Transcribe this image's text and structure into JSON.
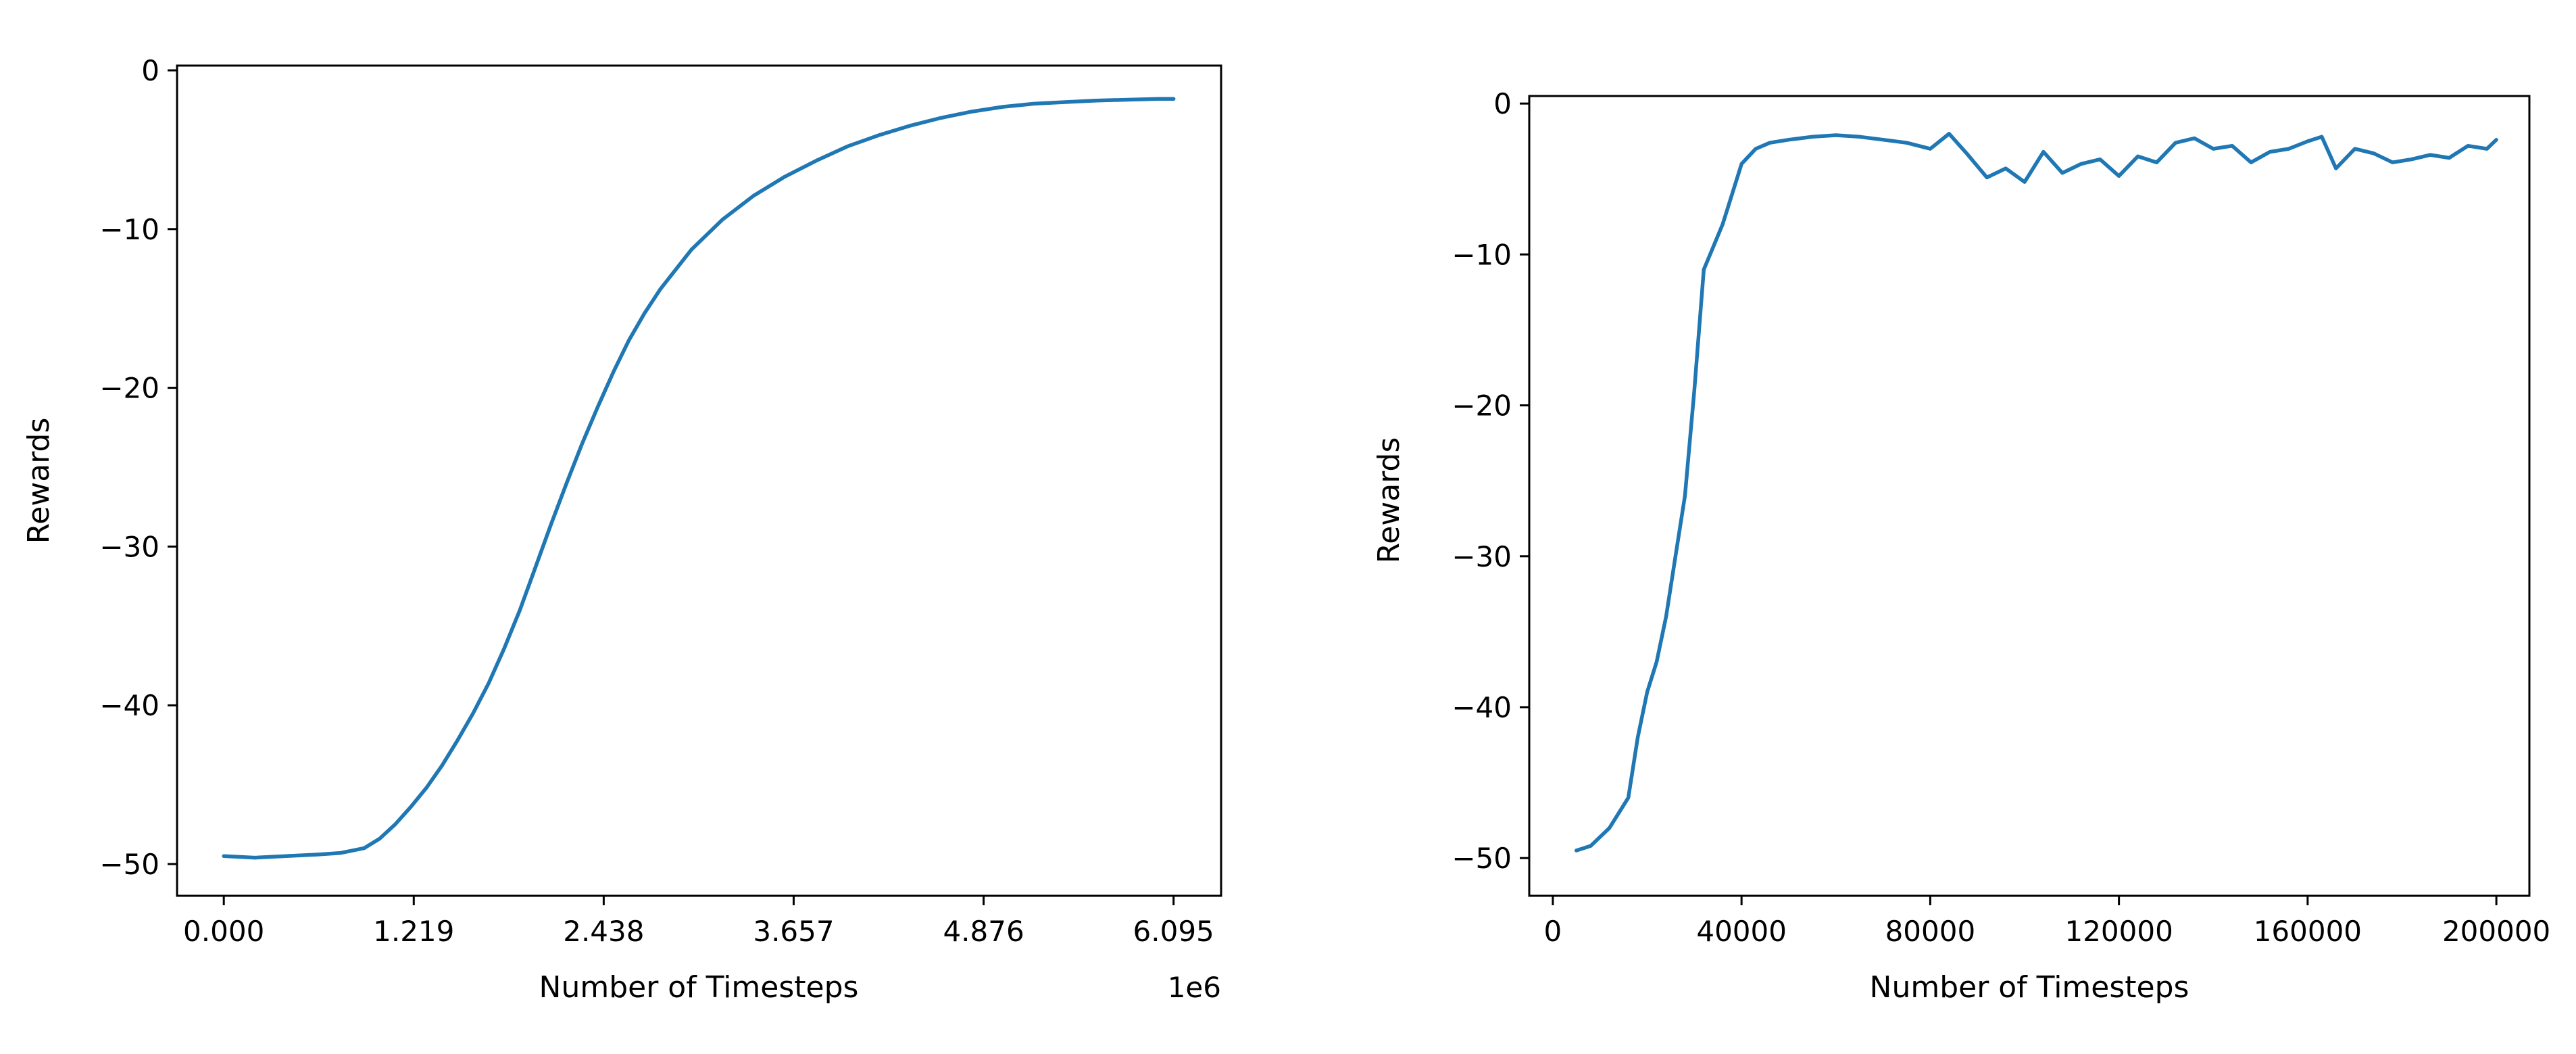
{
  "chart_data": [
    {
      "type": "line",
      "title": "",
      "xlabel": "Number of Timesteps",
      "ylabel": "Rewards",
      "x_offset_label": "1e6",
      "xlim": [
        -0.3,
        6.4
      ],
      "ylim": [
        -52,
        0.3
      ],
      "xticks": [
        0.0,
        1.219,
        2.438,
        3.657,
        4.876,
        6.095
      ],
      "xtick_labels": [
        "0.000",
        "1.219",
        "2.438",
        "3.657",
        "4.876",
        "6.095"
      ],
      "yticks": [
        0,
        -10,
        -20,
        -30,
        -40,
        -50
      ],
      "ytick_labels": [
        "0",
        "−10",
        "−20",
        "−30",
        "−40",
        "−50"
      ],
      "grid": false,
      "color": "#1f77b4",
      "series": [
        {
          "x": [
            0.0,
            0.2,
            0.4,
            0.6,
            0.75,
            0.9,
            1.0,
            1.1,
            1.2,
            1.3,
            1.4,
            1.5,
            1.6,
            1.7,
            1.8,
            1.9,
            2.0,
            2.1,
            2.2,
            2.3,
            2.4,
            2.5,
            2.6,
            2.7,
            2.8,
            3.0,
            3.2,
            3.4,
            3.6,
            3.8,
            4.0,
            4.2,
            4.4,
            4.6,
            4.8,
            5.0,
            5.2,
            5.4,
            5.6,
            5.8,
            6.0,
            6.095
          ],
          "values": [
            -49.5,
            -49.6,
            -49.5,
            -49.4,
            -49.3,
            -49.0,
            -48.4,
            -47.5,
            -46.4,
            -45.2,
            -43.8,
            -42.2,
            -40.5,
            -38.6,
            -36.4,
            -34.0,
            -31.3,
            -28.6,
            -26.0,
            -23.5,
            -21.2,
            -19.0,
            -17.0,
            -15.3,
            -13.8,
            -11.3,
            -9.4,
            -7.9,
            -6.7,
            -5.7,
            -4.8,
            -4.1,
            -3.5,
            -3.0,
            -2.6,
            -2.3,
            -2.1,
            -2.0,
            -1.9,
            -1.85,
            -1.8,
            -1.8
          ]
        }
      ]
    },
    {
      "type": "line",
      "title": "",
      "xlabel": "Number of Timesteps",
      "ylabel": "Rewards",
      "xlim": [
        -5000,
        207000
      ],
      "ylim": [
        -52.5,
        0.5
      ],
      "xticks": [
        0,
        40000,
        80000,
        120000,
        160000,
        200000
      ],
      "xtick_labels": [
        "0",
        "40000",
        "80000",
        "120000",
        "160000",
        "200000"
      ],
      "yticks": [
        0,
        -10,
        -20,
        -30,
        -40,
        -50
      ],
      "ytick_labels": [
        "0",
        "−10",
        "−20",
        "−30",
        "−40",
        "−50"
      ],
      "grid": false,
      "color": "#1f77b4",
      "series": [
        {
          "x": [
            5000,
            8000,
            12000,
            16000,
            18000,
            20000,
            22000,
            24000,
            26000,
            28000,
            30000,
            32000,
            34000,
            36000,
            38000,
            40000,
            43000,
            46000,
            50000,
            55000,
            60000,
            65000,
            70000,
            75000,
            80000,
            84000,
            88000,
            92000,
            96000,
            100000,
            104000,
            108000,
            112000,
            116000,
            120000,
            124000,
            128000,
            132000,
            136000,
            140000,
            144000,
            148000,
            152000,
            156000,
            160000,
            163000,
            166000,
            170000,
            174000,
            178000,
            182000,
            186000,
            190000,
            194000,
            198000,
            200000
          ],
          "values": [
            -49.5,
            -49.2,
            -48.0,
            -46.0,
            -42.0,
            -39.0,
            -37.0,
            -34.0,
            -30.0,
            -26.0,
            -19.0,
            -11.0,
            -9.5,
            -8.0,
            -6.0,
            -4.0,
            -3.0,
            -2.6,
            -2.4,
            -2.2,
            -2.1,
            -2.2,
            -2.4,
            -2.6,
            -3.0,
            -2.0,
            -3.4,
            -4.9,
            -4.3,
            -5.2,
            -3.2,
            -4.6,
            -4.0,
            -3.7,
            -4.8,
            -3.5,
            -3.9,
            -2.6,
            -2.3,
            -3.0,
            -2.8,
            -3.9,
            -3.2,
            -3.0,
            -2.5,
            -2.2,
            -4.3,
            -3.0,
            -3.3,
            -3.9,
            -3.7,
            -3.4,
            -3.6,
            -2.8,
            -3.0,
            -2.4
          ]
        }
      ]
    }
  ]
}
